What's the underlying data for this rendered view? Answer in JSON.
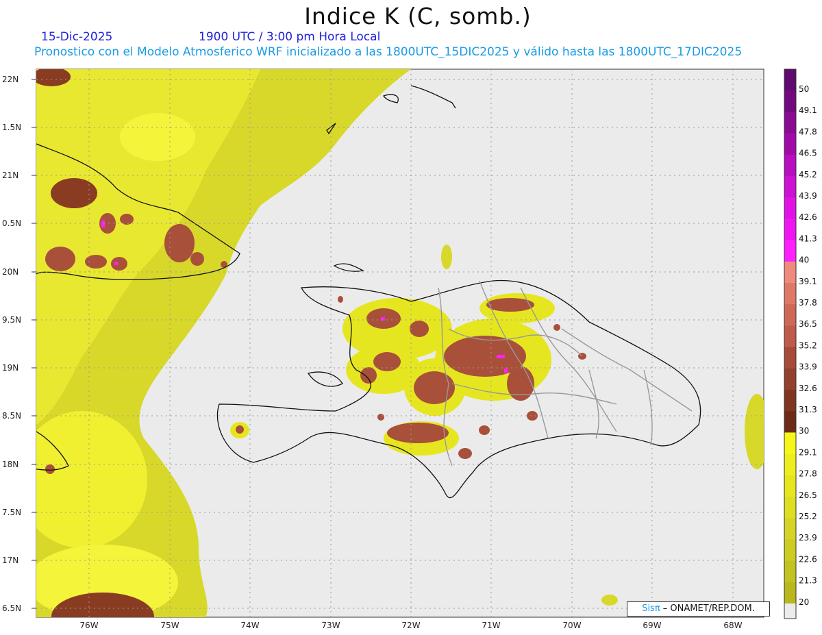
{
  "title": "Indice K (C, somb.)",
  "date": "15-Dic-2025",
  "time": "1900 UTC / 3:00 pm Hora Local",
  "description": "Pronostico con el Modelo Atmosferico WRF inicializado a las 1800UTC_15DIC2025 y válido hasta las  1800UTC_17DIC2025",
  "lat_labels": [
    "22N",
    "1.5N",
    "21N",
    "0.5N",
    "20N",
    "9.5N",
    "19N",
    "8.5N",
    "18N",
    "7.5N",
    "17N",
    "6.5N"
  ],
  "lon_labels": [
    "76W",
    "75W",
    "74W",
    "73W",
    "72W",
    "71W",
    "70W",
    "69W",
    "68W"
  ],
  "colorbar": {
    "labels": [
      "50",
      "49.1",
      "47.8",
      "46.5",
      "45.2",
      "43.9",
      "42.6",
      "41.3",
      "40",
      "39.1",
      "37.8",
      "36.5",
      "35.2",
      "33.9",
      "32.6",
      "31.3",
      "30",
      "29.1",
      "27.8",
      "26.5",
      "25.2",
      "23.9",
      "22.6",
      "21.3",
      "20"
    ],
    "colors": [
      "#5e0a6e",
      "#73097f",
      "#8a0a94",
      "#a00aa8",
      "#b80ec0",
      "#cc10d4",
      "#e012e6",
      "#f016f2",
      "#ff20ff",
      "#f08a7e",
      "#e07868",
      "#d06858",
      "#c05a4a",
      "#a84a3a",
      "#94402e",
      "#803422",
      "#6e2a18",
      "#f6f61a",
      "#eeee1e",
      "#e6e620",
      "#dede22",
      "#d4d424",
      "#cccc22",
      "#c2c220",
      "#b8b81e"
    ],
    "bottom_color": "#ececec"
  },
  "credit": {
    "brand": "Sisπ",
    "rest": " – ONAMET/REP.DOM."
  }
}
